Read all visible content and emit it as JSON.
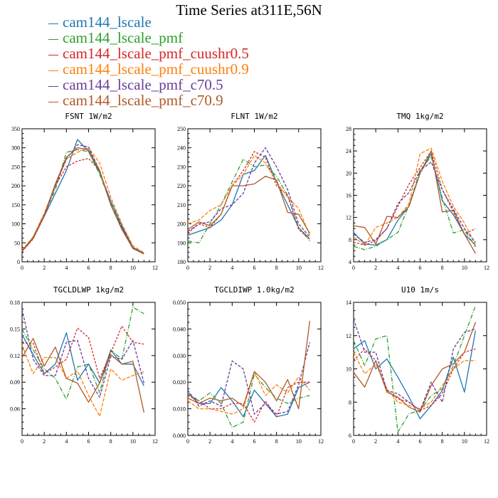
{
  "title": "Time Series at311E,56N",
  "legend": [
    {
      "name": "cam144_lscale",
      "color": "#1f77b4"
    },
    {
      "name": "cam144_lscale_pmf",
      "color": "#2ca02c"
    },
    {
      "name": "cam144_lscale_pmf_cuushr0.5",
      "color": "#d62728"
    },
    {
      "name": "cam144_lscale_pmf_cuushr0.9",
      "color": "#ff7f0e"
    },
    {
      "name": "cam144_lscale_pmf_c70.5",
      "color": "#6a3d9a"
    },
    {
      "name": "cam144_lscale_pmf_c70.9",
      "color": "#b15928"
    }
  ],
  "chart_data": [
    {
      "type": "line",
      "title": "FSNT   1W/m2",
      "x": [
        0,
        1,
        2,
        3,
        4,
        5,
        6,
        7,
        8,
        9,
        10,
        11
      ],
      "xlim": [
        0,
        12
      ],
      "xticks": [
        "0",
        "2",
        "4",
        "6",
        "8",
        "10",
        "12"
      ],
      "ylim": [
        0,
        350
      ],
      "yticks": [
        "0",
        "50",
        "100",
        "150",
        "200",
        "250",
        "300",
        "350"
      ],
      "series": [
        {
          "name": "cam144_lscale",
          "values": [
            28,
            62,
            120,
            180,
            240,
            322,
            290,
            235,
            160,
            95,
            38,
            22
          ]
        },
        {
          "name": "cam144_lscale_pmf",
          "values": [
            30,
            65,
            125,
            190,
            288,
            295,
            290,
            230,
            155,
            90,
            35,
            22
          ]
        },
        {
          "name": "cam144_lscale_pmf_cuushr0.5",
          "values": [
            27,
            60,
            120,
            200,
            250,
            265,
            272,
            240,
            150,
            88,
            36,
            20
          ]
        },
        {
          "name": "cam144_lscale_pmf_cuushr0.9",
          "values": [
            30,
            66,
            128,
            200,
            270,
            288,
            300,
            260,
            170,
            100,
            42,
            24
          ]
        },
        {
          "name": "cam144_lscale_pmf_c70.5",
          "values": [
            28,
            62,
            122,
            200,
            270,
            308,
            302,
            240,
            150,
            90,
            35,
            22
          ]
        },
        {
          "name": "cam144_lscale_pmf_c70.9",
          "values": [
            29,
            63,
            123,
            205,
            275,
            300,
            295,
            240,
            150,
            85,
            35,
            21
          ]
        }
      ]
    },
    {
      "type": "line",
      "title": "FLNT   1W/m2",
      "x": [
        0,
        1,
        2,
        3,
        4,
        5,
        6,
        7,
        8,
        9,
        10,
        11
      ],
      "xlim": [
        0,
        12
      ],
      "xticks": [
        "0",
        "2",
        "4",
        "6",
        "8",
        "10",
        "12"
      ],
      "ylim": [
        180,
        250
      ],
      "yticks": [
        "180",
        "190",
        "200",
        "210",
        "220",
        "230",
        "240",
        "250"
      ],
      "series": [
        {
          "name": "cam144_lscale",
          "values": [
            194,
            196,
            198,
            202,
            210,
            226,
            228,
            236,
            222,
            210,
            198,
            192
          ]
        },
        {
          "name": "cam144_lscale_pmf",
          "values": [
            191,
            190,
            200,
            210,
            222,
            234,
            230,
            231,
            225,
            215,
            198,
            191
          ]
        },
        {
          "name": "cam144_lscale_pmf_cuushr0.5",
          "values": [
            195,
            200,
            198,
            205,
            220,
            228,
            238,
            235,
            220,
            215,
            197,
            192
          ]
        },
        {
          "name": "cam144_lscale_pmf_cuushr0.9",
          "values": [
            200,
            202,
            207,
            210,
            220,
            226,
            236,
            232,
            222,
            214,
            208,
            194
          ]
        },
        {
          "name": "cam144_lscale_pmf_c70.5",
          "values": [
            196,
            200,
            201,
            208,
            210,
            216,
            232,
            240,
            230,
            218,
            200,
            193
          ]
        },
        {
          "name": "cam144_lscale_pmf_c70.9",
          "values": [
            197,
            201,
            199,
            205,
            220,
            220,
            221,
            225,
            223,
            206,
            205,
            195
          ]
        }
      ]
    },
    {
      "type": "line",
      "title": "TMQ   1kg/m2",
      "x": [
        0,
        1,
        2,
        3,
        4,
        5,
        6,
        7,
        8,
        9,
        10,
        11
      ],
      "xlim": [
        0,
        12
      ],
      "xticks": [
        "0",
        "2",
        "4",
        "6",
        "8",
        "10",
        "12"
      ],
      "ylim": [
        4,
        28
      ],
      "yticks": [
        "4",
        "8",
        "12",
        "16",
        "20",
        "24",
        "28"
      ],
      "series": [
        {
          "name": "cam144_lscale",
          "values": [
            9.3,
            7.2,
            7.0,
            8.0,
            11.5,
            14.0,
            20.0,
            23.5,
            15.0,
            12.5,
            9.0,
            7.0
          ]
        },
        {
          "name": "cam144_lscale_pmf",
          "values": [
            6.8,
            6.2,
            6.8,
            8.0,
            9.3,
            14.2,
            20.5,
            23.0,
            15.5,
            9.2,
            9.8,
            6.7
          ]
        },
        {
          "name": "cam144_lscale_pmf_cuushr0.5",
          "values": [
            7.5,
            7.0,
            7.8,
            10.0,
            14.0,
            18.0,
            21.0,
            24.0,
            17.0,
            13.0,
            9.0,
            10.0
          ]
        },
        {
          "name": "cam144_lscale_pmf_cuushr0.9",
          "values": [
            8.5,
            7.0,
            10.2,
            11.0,
            12.0,
            14.5,
            23.5,
            24.5,
            18.5,
            14.0,
            11.0,
            7.0
          ]
        },
        {
          "name": "cam144_lscale_pmf_c70.5",
          "values": [
            9.0,
            7.5,
            8.0,
            10.0,
            14.5,
            16.5,
            20.5,
            22.0,
            17.0,
            13.5,
            10.0,
            7.5
          ]
        },
        {
          "name": "cam144_lscale_pmf_c70.9",
          "values": [
            10.5,
            10.2,
            7.2,
            12.2,
            12.0,
            14.0,
            20.0,
            24.0,
            13.0,
            13.3,
            9.0,
            5.5
          ]
        }
      ]
    },
    {
      "type": "line",
      "title": "TGCLDLWP   1kg/m2",
      "x": [
        0,
        1,
        2,
        3,
        4,
        5,
        6,
        7,
        8,
        9,
        10,
        11
      ],
      "xlim": [
        0,
        12
      ],
      "xticks": [
        "0",
        "2",
        "4",
        "6",
        "8",
        "10",
        "12"
      ],
      "ylim": [
        0.04,
        0.18
      ],
      "yticks": [
        "",
        "0.06",
        "0.09",
        "0.12",
        "0.15",
        "0.18"
      ],
      "series": [
        {
          "name": "cam144_lscale",
          "values": [
            0.146,
            0.125,
            0.105,
            0.115,
            0.148,
            0.098,
            0.115,
            0.095,
            0.13,
            0.115,
            0.115,
            0.092
          ]
        },
        {
          "name": "cam144_lscale_pmf",
          "values": [
            0.152,
            0.13,
            0.11,
            0.1,
            0.078,
            0.112,
            0.115,
            0.085,
            0.13,
            0.12,
            0.175,
            0.168
          ]
        },
        {
          "name": "cam144_lscale_pmf_cuushr0.5",
          "values": [
            0.137,
            0.137,
            0.105,
            0.112,
            0.12,
            0.153,
            0.143,
            0.1,
            0.127,
            0.155,
            0.138,
            0.136
          ]
        },
        {
          "name": "cam144_lscale_pmf_cuushr0.9",
          "values": [
            0.135,
            0.105,
            0.122,
            0.122,
            0.1,
            0.108,
            0.082,
            0.06,
            0.11,
            0.098,
            0.103,
            0.107
          ]
        },
        {
          "name": "cam144_lscale_pmf_c70.5",
          "values": [
            0.173,
            0.12,
            0.103,
            0.103,
            0.138,
            0.14,
            0.1,
            0.08,
            0.123,
            0.12,
            0.14,
            0.095
          ]
        },
        {
          "name": "cam144_lscale_pmf_c70.9",
          "values": [
            0.122,
            0.142,
            0.113,
            0.133,
            0.1,
            0.095,
            0.075,
            0.095,
            0.125,
            0.115,
            0.118,
            0.064
          ]
        }
      ]
    },
    {
      "type": "line",
      "title": "TGCLDIWP   1.0kg/m2",
      "x": [
        0,
        1,
        2,
        3,
        4,
        5,
        6,
        7,
        8,
        9,
        10,
        11
      ],
      "xlim": [
        0,
        12
      ],
      "xticks": [
        "0",
        "2",
        "4",
        "6",
        "8",
        "10",
        "12"
      ],
      "ylim": [
        0,
        0.05
      ],
      "yticks": [
        "0.000",
        "0.010",
        "0.020",
        "0.030",
        "0.040",
        "0.050"
      ],
      "series": [
        {
          "name": "cam144_lscale",
          "values": [
            0.016,
            0.012,
            0.012,
            0.018,
            0.013,
            0.007,
            0.017,
            0.012,
            0.007,
            0.008,
            0.018,
            0.02
          ]
        },
        {
          "name": "cam144_lscale_pmf",
          "values": [
            0.016,
            0.013,
            0.016,
            0.012,
            0.003,
            0.005,
            0.023,
            0.018,
            0.014,
            0.012,
            0.014,
            0.015
          ]
        },
        {
          "name": "cam144_lscale_pmf_cuushr0.5",
          "values": [
            0.015,
            0.013,
            0.01,
            0.01,
            0.012,
            0.012,
            0.005,
            0.013,
            0.007,
            0.018,
            0.02,
            0.02
          ]
        },
        {
          "name": "cam144_lscale_pmf_cuushr0.9",
          "values": [
            0.013,
            0.01,
            0.01,
            0.009,
            0.008,
            0.01,
            0.024,
            0.015,
            0.019,
            0.016,
            0.022,
            0.017
          ]
        },
        {
          "name": "cam144_lscale_pmf_c70.5",
          "values": [
            0.017,
            0.011,
            0.013,
            0.011,
            0.028,
            0.025,
            0.008,
            0.012,
            0.008,
            0.009,
            0.019,
            0.035
          ]
        },
        {
          "name": "cam144_lscale_pmf_c70.9",
          "values": [
            0.014,
            0.012,
            0.014,
            0.013,
            0.014,
            0.011,
            0.024,
            0.02,
            0.013,
            0.021,
            0.01,
            0.043
          ]
        }
      ]
    },
    {
      "type": "line",
      "title": "U10   1m/s",
      "x": [
        0,
        1,
        2,
        3,
        4,
        5,
        6,
        7,
        8,
        9,
        10,
        11
      ],
      "xlim": [
        0,
        12
      ],
      "xticks": [
        "0",
        "2",
        "4",
        "6",
        "8",
        "10",
        "12"
      ],
      "ylim": [
        6,
        14
      ],
      "yticks": [
        "6",
        "8",
        "10",
        "12",
        "14"
      ],
      "series": [
        {
          "name": "cam144_lscale",
          "values": [
            11.2,
            11.7,
            10.0,
            10.6,
            9.5,
            8.3,
            7.0,
            7.8,
            8.7,
            10.7,
            8.6,
            12.3
          ]
        },
        {
          "name": "cam144_lscale_pmf",
          "values": [
            11.7,
            10.2,
            11.8,
            12.0,
            6.2,
            7.3,
            7.5,
            8.4,
            8.8,
            10.2,
            12.0,
            13.8
          ]
        },
        {
          "name": "cam144_lscale_pmf_cuushr0.5",
          "values": [
            10.5,
            11.2,
            10.5,
            8.7,
            8.2,
            8.0,
            7.5,
            7.8,
            8.5,
            10.0,
            11.0,
            11.2
          ]
        },
        {
          "name": "cam144_lscale_pmf_cuushr0.9",
          "values": [
            11.0,
            9.7,
            10.3,
            8.8,
            8.0,
            7.8,
            7.6,
            8.0,
            9.0,
            10.0,
            10.5,
            10.5
          ]
        },
        {
          "name": "cam144_lscale_pmf_c70.5",
          "values": [
            13.0,
            11.0,
            11.0,
            8.7,
            8.5,
            8.0,
            7.5,
            9.2,
            8.0,
            11.2,
            12.2,
            12.4
          ]
        },
        {
          "name": "cam144_lscale_pmf_c70.9",
          "values": [
            9.8,
            8.9,
            10.5,
            8.6,
            8.3,
            7.7,
            7.4,
            9.0,
            10.0,
            10.3,
            11.0,
            12.8
          ]
        }
      ]
    }
  ]
}
